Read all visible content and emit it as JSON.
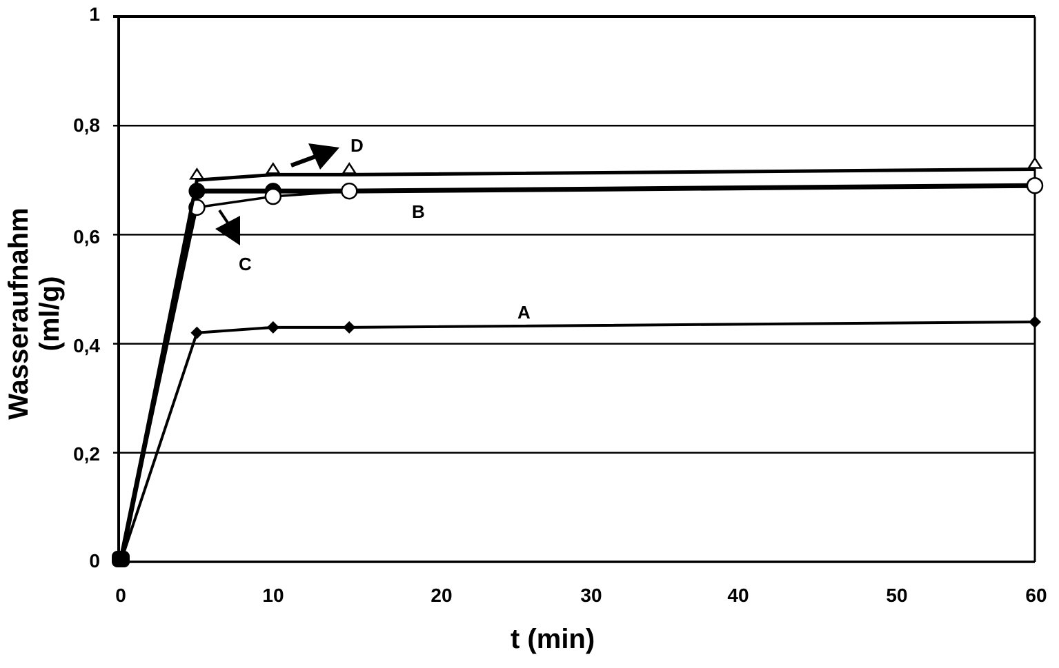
{
  "chart_data": {
    "type": "line",
    "title": "",
    "xlabel": "t (min)",
    "ylabel": "Wasseraufnahm (ml/g)",
    "xlim": [
      0,
      60
    ],
    "ylim": [
      0,
      1
    ],
    "x_ticks": [
      "0",
      "10",
      "20",
      "30",
      "40",
      "50",
      "60"
    ],
    "y_ticks": [
      "0",
      "0,2",
      "0,4",
      "0,6",
      "0,8",
      "1"
    ],
    "grid": "horizontal",
    "legend": "none (inline labels)",
    "x": [
      0,
      5,
      10,
      15,
      60
    ],
    "series": [
      {
        "name": "A",
        "marker": "diamond",
        "values": [
          0,
          0.42,
          0.43,
          0.43,
          0.44
        ]
      },
      {
        "name": "B",
        "marker": "filled-circle",
        "values": [
          0,
          0.68,
          0.68,
          0.68,
          0.69
        ]
      },
      {
        "name": "C",
        "marker": "open-circle",
        "values": [
          0,
          0.65,
          0.67,
          0.68,
          0.69
        ]
      },
      {
        "name": "D",
        "marker": "open-triangle",
        "values": [
          0,
          0.7,
          0.71,
          0.71,
          0.72
        ]
      }
    ],
    "annotations": [
      {
        "text": "A",
        "x": 26,
        "y": 0.46
      },
      {
        "text": "B",
        "x": 19,
        "y": 0.65
      },
      {
        "text": "C",
        "x": 8,
        "y": 0.54,
        "arrow": true
      },
      {
        "text": "D",
        "x": 15.5,
        "y": 0.76,
        "arrow": true
      }
    ]
  },
  "axes": {
    "ylabel": "Wasseraufnahm (ml/g)",
    "xlabel": "t (min)",
    "yticks": [
      "1",
      "0,8",
      "0,6",
      "0,4",
      "0,2",
      "0"
    ],
    "xticks": [
      "0",
      "10",
      "20",
      "30",
      "40",
      "50",
      "60"
    ]
  },
  "labels": {
    "A": "A",
    "B": "B",
    "C": "C",
    "D": "D"
  }
}
